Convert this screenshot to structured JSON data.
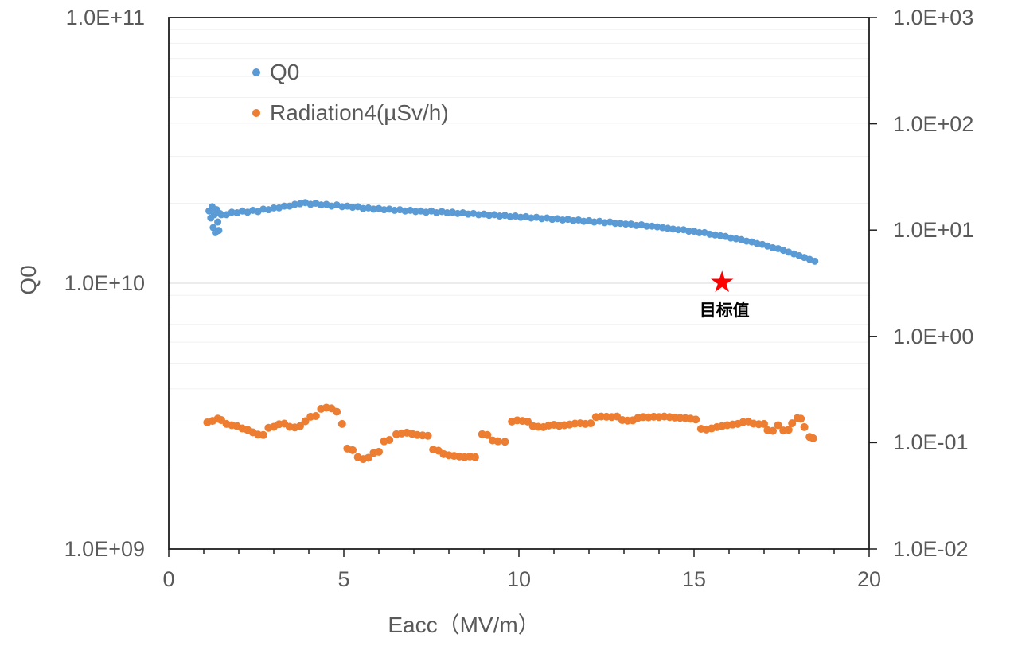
{
  "chart_data": {
    "type": "scatter",
    "title": "",
    "xlabel": "Eacc（MV/m）",
    "ylabel_left": "Q0",
    "ylabel_right": "",
    "grid": "log-minor-horizontal",
    "legend_position": "top-left-inside",
    "x_axis": {
      "min": 0,
      "max": 20,
      "major_ticks": [
        0,
        5,
        10,
        15,
        20
      ],
      "minor_step": 1
    },
    "y_left": {
      "scale": "log",
      "min": 1000000000.0,
      "max": 100000000000.0,
      "tick_values": [
        100000000000.0,
        10000000000.0,
        1000000000.0
      ],
      "tick_labels": [
        "1.0E+11",
        "1.0E+10",
        "1.0E+09"
      ]
    },
    "y_right": {
      "scale": "log",
      "min": 0.01,
      "max": 1000.0,
      "tick_values": [
        1000.0,
        100.0,
        10.0,
        1.0,
        0.1,
        0.01
      ],
      "tick_labels": [
        "1.0E+03",
        "1.0E+02",
        "1.0E+01",
        "1.0E+00",
        "1.0E-01",
        "1.0E-02"
      ]
    },
    "series": [
      {
        "name": "Q0",
        "axis": "left",
        "marker": "circle",
        "color": "#5B9BD5",
        "radius": 4.5,
        "points": [
          [
            1.15,
            18700000000.0
          ],
          [
            1.2,
            17600000000.0
          ],
          [
            1.24,
            19400000000.0
          ],
          [
            1.27,
            16200000000.0
          ],
          [
            1.3,
            18100000000.0
          ],
          [
            1.33,
            15500000000.0
          ],
          [
            1.37,
            18900000000.0
          ],
          [
            1.4,
            17000000000.0
          ],
          [
            1.43,
            15800000000.0
          ],
          [
            1.46,
            18300000000.0
          ],
          [
            1.5,
            18100000000.0
          ],
          [
            1.65,
            18100000000.0
          ],
          [
            1.8,
            18500000000.0
          ],
          [
            1.95,
            18400000000.0
          ],
          [
            2.1,
            18700000000.0
          ],
          [
            2.25,
            18500000000.0
          ],
          [
            2.4,
            18800000000.0
          ],
          [
            2.55,
            18600000000.0
          ],
          [
            2.7,
            19000000000.0
          ],
          [
            2.85,
            18900000000.0
          ],
          [
            3.0,
            19200000000.0
          ],
          [
            3.15,
            19200000000.0
          ],
          [
            3.3,
            19500000000.0
          ],
          [
            3.45,
            19500000000.0
          ],
          [
            3.6,
            19800000000.0
          ],
          [
            3.75,
            19900000000.0
          ],
          [
            3.9,
            20100000000.0
          ],
          [
            4.05,
            19800000000.0
          ],
          [
            4.2,
            20000000000.0
          ],
          [
            4.35,
            19700000000.0
          ],
          [
            4.5,
            19800000000.0
          ],
          [
            4.65,
            19500000000.0
          ],
          [
            4.8,
            19700000000.0
          ],
          [
            4.95,
            19400000000.0
          ],
          [
            5.1,
            19500000000.0
          ],
          [
            5.25,
            19300000000.0
          ],
          [
            5.4,
            19400000000.0
          ],
          [
            5.55,
            19100000000.0
          ],
          [
            5.7,
            19200000000.0
          ],
          [
            5.85,
            19000000000.0
          ],
          [
            6.0,
            19100000000.0
          ],
          [
            6.15,
            18900000000.0
          ],
          [
            6.3,
            19000000000.0
          ],
          [
            6.45,
            18800000000.0
          ],
          [
            6.6,
            18900000000.0
          ],
          [
            6.75,
            18700000000.0
          ],
          [
            6.9,
            18800000000.0
          ],
          [
            7.05,
            18600000000.0
          ],
          [
            7.2,
            18700000000.0
          ],
          [
            7.35,
            18500000000.0
          ],
          [
            7.5,
            18700000000.0
          ],
          [
            7.65,
            18400000000.0
          ],
          [
            7.8,
            18600000000.0
          ],
          [
            7.95,
            18400000000.0
          ],
          [
            8.1,
            18500000000.0
          ],
          [
            8.25,
            18300000000.0
          ],
          [
            8.4,
            18400000000.0
          ],
          [
            8.55,
            18200000000.0
          ],
          [
            8.7,
            18300000000.0
          ],
          [
            8.85,
            18100000000.0
          ],
          [
            9.0,
            18200000000.0
          ],
          [
            9.15,
            18000000000.0
          ],
          [
            9.3,
            18100000000.0
          ],
          [
            9.45,
            17900000000.0
          ],
          [
            9.6,
            18000000000.0
          ],
          [
            9.75,
            17800000000.0
          ],
          [
            9.9,
            17900000000.0
          ],
          [
            10.05,
            17700000000.0
          ],
          [
            10.2,
            17800000000.0
          ],
          [
            10.35,
            17600000000.0
          ],
          [
            10.5,
            17700000000.0
          ],
          [
            10.65,
            17500000000.0
          ],
          [
            10.8,
            17600000000.0
          ],
          [
            10.95,
            17400000000.0
          ],
          [
            11.1,
            17500000000.0
          ],
          [
            11.25,
            17300000000.0
          ],
          [
            11.4,
            17400000000.0
          ],
          [
            11.55,
            17200000000.0
          ],
          [
            11.7,
            17300000000.0
          ],
          [
            11.85,
            17100000000.0
          ],
          [
            12.0,
            17200000000.0
          ],
          [
            12.15,
            17000000000.0
          ],
          [
            12.3,
            17100000000.0
          ],
          [
            12.45,
            16900000000.0
          ],
          [
            12.6,
            17000000000.0
          ],
          [
            12.75,
            16800000000.0
          ],
          [
            12.9,
            16800000000.0
          ],
          [
            13.05,
            16700000000.0
          ],
          [
            13.2,
            16700000000.0
          ],
          [
            13.35,
            16500000000.0
          ],
          [
            13.5,
            16600000000.0
          ],
          [
            13.65,
            16400000000.0
          ],
          [
            13.8,
            16400000000.0
          ],
          [
            13.95,
            16300000000.0
          ],
          [
            14.1,
            16200000000.0
          ],
          [
            14.25,
            16100000000.0
          ],
          [
            14.4,
            16000000000.0
          ],
          [
            14.55,
            15900000000.0
          ],
          [
            14.7,
            15900000000.0
          ],
          [
            14.85,
            15700000000.0
          ],
          [
            15.0,
            15700000000.0
          ],
          [
            15.15,
            15500000000.0
          ],
          [
            15.3,
            15500000000.0
          ],
          [
            15.45,
            15300000000.0
          ],
          [
            15.6,
            15200000000.0
          ],
          [
            15.75,
            15100000000.0
          ],
          [
            15.9,
            15000000000.0
          ],
          [
            16.05,
            14800000000.0
          ],
          [
            16.2,
            14700000000.0
          ],
          [
            16.35,
            14600000000.0
          ],
          [
            16.5,
            14400000000.0
          ],
          [
            16.65,
            14300000000.0
          ],
          [
            16.8,
            14100000000.0
          ],
          [
            16.95,
            14000000000.0
          ],
          [
            17.1,
            13800000000.0
          ],
          [
            17.25,
            13600000000.0
          ],
          [
            17.4,
            13500000000.0
          ],
          [
            17.55,
            13300000000.0
          ],
          [
            17.7,
            13100000000.0
          ],
          [
            17.85,
            12900000000.0
          ],
          [
            18.0,
            12700000000.0
          ],
          [
            18.15,
            12500000000.0
          ],
          [
            18.3,
            12300000000.0
          ],
          [
            18.45,
            12100000000.0
          ]
        ]
      },
      {
        "name": "Radiation4(µSv/h)",
        "axis": "right",
        "marker": "circle",
        "color": "#ED7D31",
        "radius": 5,
        "points": [
          [
            1.1,
            0.155
          ],
          [
            1.25,
            0.16
          ],
          [
            1.4,
            0.168
          ],
          [
            1.5,
            0.163
          ],
          [
            1.65,
            0.15
          ],
          [
            1.8,
            0.146
          ],
          [
            1.95,
            0.143
          ],
          [
            2.1,
            0.136
          ],
          [
            2.25,
            0.132
          ],
          [
            2.4,
            0.125
          ],
          [
            2.55,
            0.119
          ],
          [
            2.7,
            0.118
          ],
          [
            2.85,
            0.138
          ],
          [
            3.0,
            0.141
          ],
          [
            3.15,
            0.149
          ],
          [
            3.3,
            0.151
          ],
          [
            3.45,
            0.141
          ],
          [
            3.6,
            0.139
          ],
          [
            3.75,
            0.143
          ],
          [
            3.9,
            0.159
          ],
          [
            4.05,
            0.175
          ],
          [
            4.2,
            0.178
          ],
          [
            4.35,
            0.208
          ],
          [
            4.5,
            0.213
          ],
          [
            4.65,
            0.21
          ],
          [
            4.8,
            0.195
          ],
          [
            4.95,
            0.15
          ],
          [
            5.1,
            0.088
          ],
          [
            5.25,
            0.085
          ],
          [
            5.4,
            0.073
          ],
          [
            5.55,
            0.07
          ],
          [
            5.7,
            0.072
          ],
          [
            5.85,
            0.08
          ],
          [
            6.0,
            0.082
          ],
          [
            6.15,
            0.103
          ],
          [
            6.3,
            0.106
          ],
          [
            6.5,
            0.12
          ],
          [
            6.65,
            0.122
          ],
          [
            6.8,
            0.124
          ],
          [
            6.95,
            0.121
          ],
          [
            7.1,
            0.118
          ],
          [
            7.25,
            0.117
          ],
          [
            7.4,
            0.116
          ],
          [
            7.55,
            0.086
          ],
          [
            7.7,
            0.084
          ],
          [
            7.85,
            0.078
          ],
          [
            8.0,
            0.076
          ],
          [
            8.15,
            0.075
          ],
          [
            8.3,
            0.074
          ],
          [
            8.45,
            0.073
          ],
          [
            8.6,
            0.074
          ],
          [
            8.75,
            0.073
          ],
          [
            8.95,
            0.12
          ],
          [
            9.1,
            0.118
          ],
          [
            9.25,
            0.105
          ],
          [
            9.4,
            0.103
          ],
          [
            9.6,
            0.102
          ],
          [
            9.8,
            0.158
          ],
          [
            9.95,
            0.162
          ],
          [
            10.1,
            0.16
          ],
          [
            10.25,
            0.158
          ],
          [
            10.4,
            0.143
          ],
          [
            10.55,
            0.141
          ],
          [
            10.7,
            0.14
          ],
          [
            10.85,
            0.145
          ],
          [
            11.0,
            0.147
          ],
          [
            11.15,
            0.144
          ],
          [
            11.3,
            0.146
          ],
          [
            11.45,
            0.148
          ],
          [
            11.6,
            0.151
          ],
          [
            11.75,
            0.152
          ],
          [
            11.9,
            0.15
          ],
          [
            12.05,
            0.152
          ],
          [
            12.2,
            0.174
          ],
          [
            12.35,
            0.176
          ],
          [
            12.5,
            0.175
          ],
          [
            12.65,
            0.174
          ],
          [
            12.8,
            0.176
          ],
          [
            12.95,
            0.163
          ],
          [
            13.1,
            0.161
          ],
          [
            13.25,
            0.162
          ],
          [
            13.4,
            0.171
          ],
          [
            13.55,
            0.174
          ],
          [
            13.7,
            0.173
          ],
          [
            13.85,
            0.175
          ],
          [
            14.0,
            0.174
          ],
          [
            14.15,
            0.176
          ],
          [
            14.3,
            0.174
          ],
          [
            14.45,
            0.172
          ],
          [
            14.6,
            0.171
          ],
          [
            14.75,
            0.17
          ],
          [
            14.9,
            0.168
          ],
          [
            15.05,
            0.165
          ],
          [
            15.2,
            0.135
          ],
          [
            15.35,
            0.133
          ],
          [
            15.5,
            0.136
          ],
          [
            15.65,
            0.14
          ],
          [
            15.8,
            0.143
          ],
          [
            15.95,
            0.146
          ],
          [
            16.1,
            0.148
          ],
          [
            16.25,
            0.15
          ],
          [
            16.4,
            0.156
          ],
          [
            16.55,
            0.158
          ],
          [
            16.7,
            0.151
          ],
          [
            16.85,
            0.149
          ],
          [
            17.0,
            0.15
          ],
          [
            17.1,
            0.131
          ],
          [
            17.25,
            0.129
          ],
          [
            17.4,
            0.146
          ],
          [
            17.55,
            0.13
          ],
          [
            17.7,
            0.132
          ],
          [
            17.8,
            0.152
          ],
          [
            17.95,
            0.17
          ],
          [
            18.05,
            0.168
          ],
          [
            18.15,
            0.14
          ],
          [
            18.3,
            0.113
          ],
          [
            18.4,
            0.11
          ]
        ]
      }
    ],
    "annotation": {
      "symbol": "★",
      "color": "#FF0000",
      "x": 15.8,
      "y": 10000000000.0,
      "axis": "left",
      "label": "目标值"
    }
  },
  "legend": {
    "items": [
      {
        "label": "Q0",
        "color": "#5B9BD5"
      },
      {
        "label": "Radiation4(µSv/h)",
        "color": "#ED7D31"
      }
    ]
  },
  "colors": {
    "q0_series": "#5B9BD5",
    "radiation_series": "#ED7D31",
    "target_star": "#FF0000",
    "axis_text": "#595959",
    "axis_line": "#1f1f1f",
    "grid_major": "#D9D9D9",
    "grid_minor": "#F1F1F1"
  }
}
